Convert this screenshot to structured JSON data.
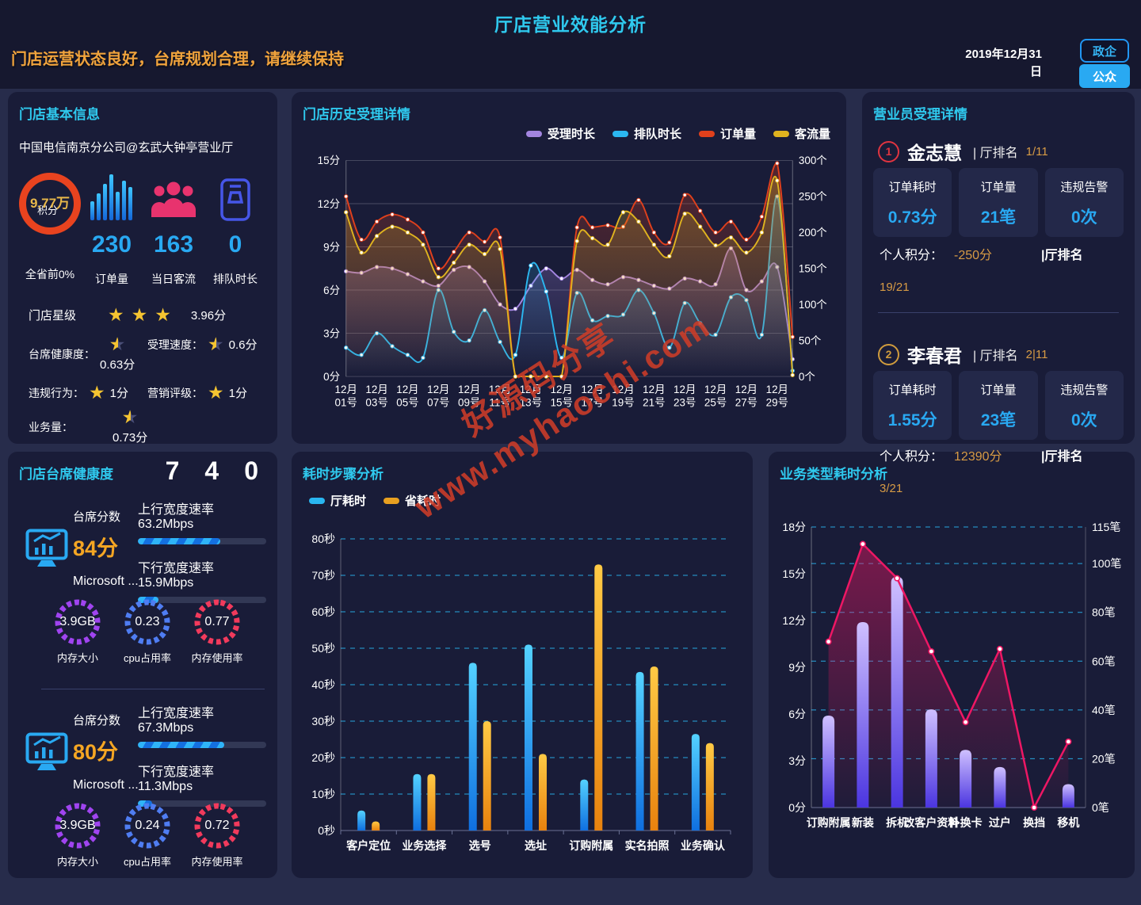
{
  "header": {
    "title": "厅店营业效能分析",
    "subtitle": "门店运营状态良好，台席规划合理，请继续保持",
    "date_line1": "2019年12月31",
    "date_line2": "日",
    "btn_gov": "政企",
    "btn_public": "公众"
  },
  "watermark": {
    "line1": "好源码分享",
    "line2": "www.myhaochi.com"
  },
  "store_info": {
    "title": "门店基本信息",
    "store_name": "中国电信南京分公司@玄武大钟亭营业厅",
    "score_value": "9.77万",
    "score_unit": "积分",
    "score_label": "全省前0%",
    "stats": [
      {
        "value": "230",
        "label": "订单量"
      },
      {
        "value": "163",
        "label": "当日客流"
      },
      {
        "value": "0",
        "label": "排队时长"
      }
    ],
    "star_rating": {
      "label": "门店星级",
      "stars": 3,
      "value": "3.96分"
    },
    "ratings": [
      {
        "label": "台席健康度：",
        "value": "0.63分",
        "star": "half"
      },
      {
        "label": "受理速度：",
        "value": "0.6分",
        "star": "half"
      },
      {
        "label": "违规行为：",
        "value": "1分",
        "star": "full"
      },
      {
        "label": "营销评级：",
        "value": "1分",
        "star": "full"
      },
      {
        "label": "业务量：",
        "value": "0.73分",
        "star": "half"
      }
    ]
  },
  "staff_panel": {
    "title": "营业员受理详情",
    "persons": [
      {
        "index": "1",
        "name": "金志慧",
        "rank_label": "| 厅排名",
        "rank": "1/11",
        "cards": [
          {
            "label": "订单耗时",
            "value": "0.73分"
          },
          {
            "label": "订单量",
            "value": "21笔"
          },
          {
            "label": "违规告警",
            "value": "0次"
          }
        ],
        "score_label": "个人积分：",
        "score": "-250分",
        "rank2_label": "|厅排名",
        "rank2": "19/21"
      },
      {
        "index": "2",
        "name": "李春君",
        "rank_label": "| 厅排名",
        "rank": "2|11",
        "cards": [
          {
            "label": "订单耗时",
            "value": "1.55分"
          },
          {
            "label": "订单量",
            "value": "23笔"
          },
          {
            "label": "违规告警",
            "value": "0次"
          }
        ],
        "score_label": "个人积分：",
        "score": "12390分",
        "rank2_label": "|厅排名",
        "rank2": "3/21"
      }
    ]
  },
  "health_panel": {
    "title": "门店台席健康度",
    "counters": [
      "7",
      "4",
      "0"
    ],
    "stations": [
      {
        "score_label": "台席分数",
        "score": "84分",
        "os": "Microsoft ...",
        "bars": [
          {
            "label": "上行宽度速率",
            "value": "63.2Mbps",
            "pct": 64
          },
          {
            "label": "下行宽度速率",
            "value": "15.9Mbps",
            "pct": 16
          }
        ],
        "gauges": [
          {
            "value": "3.9GB",
            "label": "内存大小",
            "color": "purple"
          },
          {
            "value": "0.23",
            "label": "cpu占用率",
            "color": "blue"
          },
          {
            "value": "0.77",
            "label": "内存使用率",
            "color": "red"
          }
        ]
      },
      {
        "score_label": "台席分数",
        "score": "80分",
        "os": "Microsoft ...",
        "bars": [
          {
            "label": "上行宽度速率",
            "value": "67.3Mbps",
            "pct": 67
          },
          {
            "label": "下行宽度速率",
            "value": "11.3Mbps",
            "pct": 11
          }
        ],
        "gauges": [
          {
            "value": "3.9GB",
            "label": "内存大小",
            "color": "purple"
          },
          {
            "value": "0.24",
            "label": "cpu占用率",
            "color": "blue"
          },
          {
            "value": "0.72",
            "label": "内存使用率",
            "color": "red"
          }
        ]
      }
    ]
  },
  "chart_data": [
    {
      "type": "line",
      "title": "门店历史受理详情",
      "left_unit": "分",
      "right_unit": "个",
      "left_max": 15,
      "right_max": 300,
      "left_ticks": [
        0,
        3,
        6,
        9,
        12,
        15
      ],
      "right_ticks": [
        0,
        50,
        100,
        150,
        200,
        250,
        300
      ],
      "grid": true,
      "legend_position": "top-right",
      "x_labels": [
        "12月01号",
        "12月03号",
        "12月05号",
        "12月07号",
        "12月09号",
        "12月11号",
        "12月13号",
        "12月15号",
        "12月17号",
        "12月19号",
        "12月21号",
        "12月23号",
        "12月25号",
        "12月27号",
        "12月29号"
      ],
      "series": [
        {
          "name": "受理时长",
          "color": "#a385e0",
          "axis": "left",
          "values": [
            7.3,
            7.2,
            7.6,
            7.5,
            7.1,
            6.6,
            6.3,
            7.4,
            7.6,
            6.6,
            5.0,
            4.7,
            6.3,
            7.5,
            6.8,
            7.4,
            6.7,
            6.4,
            6.9,
            6.7,
            6.3,
            6.1,
            6.8,
            6.6,
            6.4,
            8.9,
            6.0,
            6.6,
            7.6,
            1.2
          ]
        },
        {
          "name": "排队时长",
          "color": "#2bb7f0",
          "axis": "left",
          "values": [
            2.0,
            1.5,
            3.0,
            2.1,
            1.5,
            1.3,
            6.0,
            3.1,
            2.5,
            4.6,
            2.4,
            1.5,
            7.7,
            5.9,
            1.3,
            5.8,
            3.9,
            4.2,
            4.3,
            6.0,
            4.4,
            2.0,
            5.1,
            3.7,
            2.9,
            5.5,
            5.3,
            2.9,
            12.5,
            0.4
          ]
        },
        {
          "name": "订单量",
          "color": "#e0401c",
          "axis": "right",
          "values": [
            250,
            190,
            215,
            225,
            218,
            200,
            150,
            173,
            200,
            187,
            193,
            0,
            0,
            0,
            0,
            207,
            207,
            210,
            208,
            245,
            200,
            186,
            252,
            230,
            200,
            215,
            190,
            222,
            296,
            55
          ]
        },
        {
          "name": "客流量",
          "color": "#dfb31f",
          "axis": "right",
          "values": [
            228,
            172,
            195,
            208,
            200,
            183,
            138,
            158,
            183,
            170,
            177,
            0,
            0,
            0,
            0,
            188,
            192,
            183,
            228,
            215,
            183,
            167,
            226,
            208,
            182,
            193,
            172,
            200,
            272,
            2
          ]
        }
      ]
    },
    {
      "type": "bar",
      "title": "耗时步骤分析",
      "unit": "秒",
      "ymax": 80,
      "yticks": [
        0,
        10,
        20,
        30,
        40,
        50,
        60,
        70,
        80
      ],
      "grid": "dashed",
      "legend_position": "top-left",
      "categories": [
        "客户定位",
        "业务选择",
        "选号",
        "选址",
        "订购附属",
        "实名拍照",
        "业务确认"
      ],
      "series": [
        {
          "name": "厅耗时",
          "color": "#29b6f0",
          "gradient": [
            "#54d2ff",
            "#0f6fe0"
          ],
          "values": [
            5.5,
            15.5,
            46,
            51,
            14,
            43.5,
            26.5
          ]
        },
        {
          "name": "省耗时",
          "color": "#e8a020",
          "gradient": [
            "#ffca45",
            "#e8820e"
          ],
          "values": [
            2.5,
            15.5,
            30,
            21,
            73,
            45,
            24
          ]
        }
      ]
    },
    {
      "type": "bar-line",
      "title": "业务类型耗时分析",
      "categories": [
        "订购附属",
        "新装",
        "拆机",
        "改客户资料",
        "补换卡",
        "过户",
        "换挡",
        "移机"
      ],
      "left_unit": "分",
      "left_max": 18,
      "left_ticks": [
        0,
        3,
        6,
        9,
        12,
        15,
        18
      ],
      "right_unit": "笔",
      "right_max": 115,
      "right_ticks": [
        0,
        20,
        40,
        60,
        80,
        100,
        115
      ],
      "grid": "dashed",
      "bars": {
        "gradient": [
          "#cfc0ff",
          "#4b35e0"
        ],
        "values": [
          5.9,
          11.9,
          14.8,
          6.3,
          3.7,
          2.6,
          0,
          1.5
        ]
      },
      "line": {
        "color": "#ee1764",
        "values": [
          68,
          108,
          94,
          64,
          35,
          65,
          0,
          27
        ]
      }
    }
  ]
}
